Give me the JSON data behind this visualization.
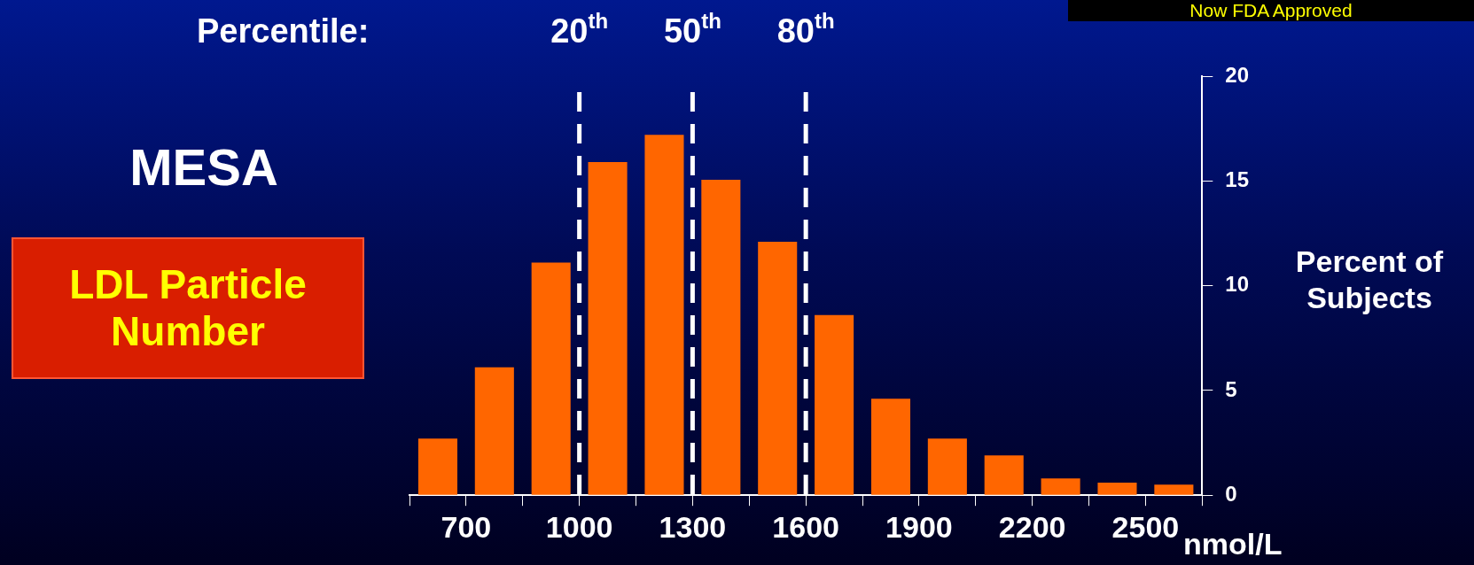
{
  "chart_data": {
    "type": "histogram",
    "title": "MESA",
    "subtitle": "LDL Particle Number",
    "xlabel": "nmol/L",
    "ylabel": "Percent of Subjects",
    "annotations": [
      "Percentile:",
      "Now FDA Approved"
    ],
    "bins": [
      550,
      700,
      850,
      1000,
      1150,
      1300,
      1450,
      1600,
      1750,
      1900,
      2050,
      2200,
      2350,
      2500,
      2650
    ],
    "values": [
      2.7,
      6.1,
      11.1,
      15.9,
      17.2,
      15.05,
      12.1,
      8.6,
      4.6,
      2.7,
      1.9,
      0.8,
      0.6,
      0.5
    ],
    "color": "#ff6600",
    "xlim": [
      550,
      2650
    ],
    "xticks": [
      {
        "value": 550,
        "label": null
      },
      700,
      {
        "value": 850,
        "label": null
      },
      1000,
      {
        "value": 1150,
        "label": null
      },
      1300,
      {
        "value": 1450,
        "label": null
      },
      1600,
      {
        "value": 1750,
        "label": null
      },
      1900,
      {
        "value": 2050,
        "label": null
      },
      2200,
      {
        "value": 2350,
        "label": null
      },
      2500,
      {
        "value": 2650,
        "label": null
      }
    ],
    "ylim": [
      0,
      20
    ],
    "yticks": [
      0,
      5,
      10,
      15,
      20
    ],
    "grid": false,
    "legend": false,
    "ref_lines": [
      {
        "axis": "x",
        "value": 1000,
        "label": "20$^{th}$",
        "color": "#ffffff",
        "line_style": "dashed"
      },
      {
        "axis": "x",
        "value": 1300,
        "label": "50$^{th}$",
        "color": "#ffffff",
        "line_style": "dashed"
      },
      {
        "axis": "x",
        "value": 1600,
        "label": "80$^{th}$",
        "color": "#ffffff",
        "line_style": "dashed"
      }
    ]
  }
}
